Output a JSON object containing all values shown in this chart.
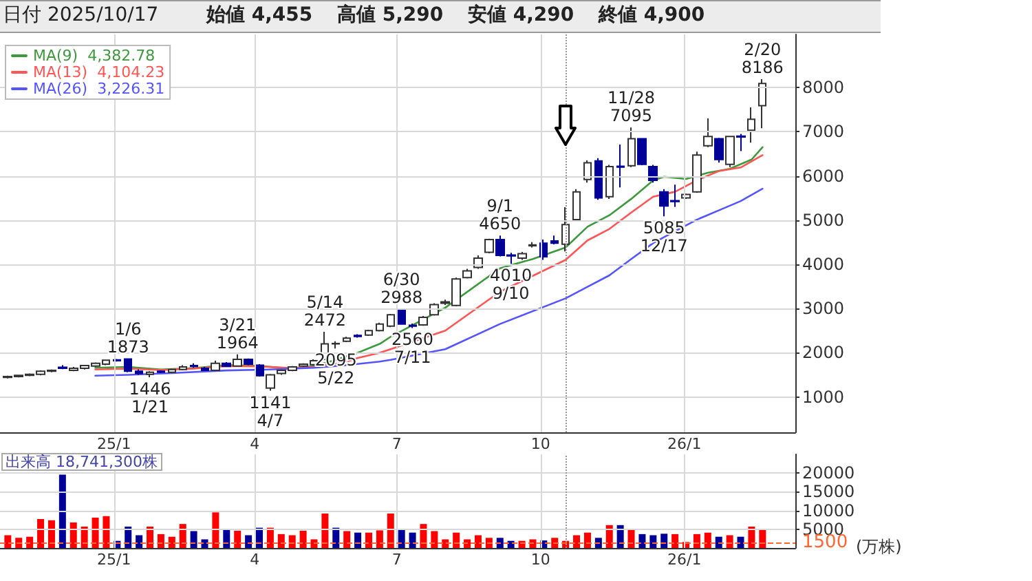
{
  "chart_data": [
    {
      "type": "candlestick",
      "title": "日付 2025/10/17",
      "annotations": [
        "始値 4,455",
        "高値 5,290",
        "安値 4,290",
        "終値 4,900",
        {
          "text": "1/6\n1873",
          "x": "2025-01-10",
          "y": 1873
        },
        {
          "text": "1446\n1/21",
          "x": "2025-01-24",
          "y": 1446
        },
        {
          "text": "3/21\n1964",
          "x": "2025-03-21",
          "y": 1964
        },
        {
          "text": "1141\n4/7",
          "x": "2025-04-11",
          "y": 1141
        },
        {
          "text": "5/14\n2472",
          "x": "2025-05-16",
          "y": 2472
        },
        {
          "text": "2095\n5/22",
          "x": "2025-05-23",
          "y": 2095
        },
        {
          "text": "6/30\n2988",
          "x": "2025-07-04",
          "y": 2988
        },
        {
          "text": "2560\n7/11",
          "x": "2025-07-11",
          "y": 2560
        },
        {
          "text": "9/1\n4650",
          "x": "2025-09-05",
          "y": 4650
        },
        {
          "text": "4010\n9/10",
          "x": "2025-09-12",
          "y": 4010
        },
        {
          "text": "11/28\n7095",
          "x": "2025-11-28",
          "y": 7095
        },
        {
          "text": "5085\n12/17",
          "x": "2025-12-19",
          "y": 5085
        },
        {
          "text": "2/20\n8186",
          "x": "2026-02-20",
          "y": 8186
        }
      ],
      "x": [
        "2024-10-25",
        "2024-11-01",
        "2024-11-08",
        "2024-11-15",
        "2024-11-22",
        "2024-11-29",
        "2024-12-06",
        "2024-12-13",
        "2024-12-20",
        "2024-12-27",
        "2025-01-03",
        "2025-01-10",
        "2025-01-17",
        "2025-01-24",
        "2025-01-31",
        "2025-02-07",
        "2025-02-14",
        "2025-02-21",
        "2025-02-28",
        "2025-03-07",
        "2025-03-14",
        "2025-03-21",
        "2025-03-28",
        "2025-04-04",
        "2025-04-11",
        "2025-04-18",
        "2025-04-25",
        "2025-05-02",
        "2025-05-09",
        "2025-05-16",
        "2025-05-23",
        "2025-05-30",
        "2025-06-06",
        "2025-06-13",
        "2025-06-20",
        "2025-06-27",
        "2025-07-04",
        "2025-07-11",
        "2025-07-18",
        "2025-07-25",
        "2025-08-01",
        "2025-08-08",
        "2025-08-15",
        "2025-08-22",
        "2025-08-29",
        "2025-09-05",
        "2025-09-12",
        "2025-09-19",
        "2025-09-26",
        "2025-10-03",
        "2025-10-10",
        "2025-10-17",
        "2025-10-24",
        "2025-10-31",
        "2025-11-07",
        "2025-11-14",
        "2025-11-21",
        "2025-11-28",
        "2025-12-05",
        "2025-12-12",
        "2025-12-19",
        "2025-12-26",
        "2026-01-02",
        "2026-01-09",
        "2026-01-16",
        "2026-01-23",
        "2026-01-30",
        "2026-02-06",
        "2026-02-13",
        "2026-02-20"
      ],
      "ohlc": [
        [
          1440,
          1480,
          1420,
          1460
        ],
        [
          1460,
          1500,
          1440,
          1490
        ],
        [
          1490,
          1530,
          1470,
          1510
        ],
        [
          1510,
          1600,
          1490,
          1580
        ],
        [
          1580,
          1620,
          1560,
          1600
        ],
        [
          1670,
          1720,
          1630,
          1650
        ],
        [
          1600,
          1680,
          1580,
          1650
        ],
        [
          1650,
          1720,
          1620,
          1710
        ],
        [
          1700,
          1780,
          1680,
          1760
        ],
        [
          1740,
          1840,
          1720,
          1830
        ],
        [
          1840,
          1860,
          1800,
          1820
        ],
        [
          1860,
          1873,
          1560,
          1580
        ],
        [
          1580,
          1620,
          1500,
          1530
        ],
        [
          1510,
          1580,
          1446,
          1560
        ],
        [
          1580,
          1600,
          1540,
          1560
        ],
        [
          1560,
          1640,
          1540,
          1620
        ],
        [
          1620,
          1720,
          1600,
          1680
        ],
        [
          1710,
          1760,
          1660,
          1690
        ],
        [
          1650,
          1680,
          1590,
          1600
        ],
        [
          1600,
          1820,
          1590,
          1760
        ],
        [
          1760,
          1790,
          1680,
          1690
        ],
        [
          1700,
          1964,
          1690,
          1850
        ],
        [
          1850,
          1870,
          1720,
          1740
        ],
        [
          1720,
          1740,
          1460,
          1480
        ],
        [
          1200,
          1520,
          1141,
          1500
        ],
        [
          1530,
          1620,
          1500,
          1600
        ],
        [
          1600,
          1700,
          1580,
          1680
        ],
        [
          1700,
          1760,
          1680,
          1740
        ],
        [
          1730,
          1850,
          1710,
          1820
        ],
        [
          1850,
          2472,
          1840,
          2200
        ],
        [
          2200,
          2260,
          2095,
          2210
        ],
        [
          2260,
          2360,
          2240,
          2330
        ],
        [
          2390,
          2420,
          2340,
          2370
        ],
        [
          2400,
          2520,
          2380,
          2500
        ],
        [
          2500,
          2680,
          2480,
          2650
        ],
        [
          2600,
          2880,
          2580,
          2860
        ],
        [
          2965,
          2988,
          2640,
          2650
        ],
        [
          2620,
          2660,
          2560,
          2600
        ],
        [
          2630,
          2830,
          2610,
          2800
        ],
        [
          2860,
          3120,
          2840,
          3090
        ],
        [
          3120,
          3200,
          3080,
          3150
        ],
        [
          3070,
          3700,
          3050,
          3670
        ],
        [
          3700,
          3900,
          3680,
          3850
        ],
        [
          3930,
          4200,
          3900,
          4140
        ],
        [
          4270,
          4580,
          4250,
          4560
        ],
        [
          4560,
          4650,
          4180,
          4200
        ],
        [
          4210,
          4260,
          4010,
          4190
        ],
        [
          4140,
          4280,
          4100,
          4240
        ],
        [
          4420,
          4500,
          4380,
          4440
        ],
        [
          4480,
          4560,
          4100,
          4170
        ],
        [
          4530,
          4650,
          4450,
          4480
        ],
        [
          4455,
          5290,
          4290,
          4900
        ],
        [
          5010,
          5700,
          4980,
          5640
        ],
        [
          5920,
          6350,
          5850,
          6295
        ],
        [
          6340,
          6400,
          5460,
          5500
        ],
        [
          5530,
          6250,
          5480,
          6210
        ],
        [
          6220,
          6710,
          5740,
          6200
        ],
        [
          6230,
          7095,
          6200,
          6840
        ],
        [
          6840,
          6850,
          6240,
          6260
        ],
        [
          6210,
          6250,
          5850,
          5900
        ],
        [
          5640,
          5700,
          5085,
          5320
        ],
        [
          5440,
          5800,
          5300,
          5420
        ],
        [
          5500,
          5600,
          5480,
          5580
        ],
        [
          5640,
          6550,
          5620,
          6470
        ],
        [
          6680,
          7300,
          6650,
          6890
        ],
        [
          6840,
          6860,
          6300,
          6370
        ],
        [
          6260,
          6900,
          6200,
          6890
        ],
        [
          6900,
          6950,
          6560,
          6880
        ],
        [
          7030,
          7550,
          6750,
          7280
        ],
        [
          7590,
          8186,
          7080,
          8090
        ]
      ],
      "colors": [
        "#ffffff",
        "#ffffff",
        "#ffffff",
        "#ffffff",
        "#ffffff",
        "#000099",
        "#ffffff",
        "#ffffff",
        "#ffffff",
        "#ffffff",
        "#000099",
        "#000099",
        "#000099",
        "#ffffff",
        "#000099",
        "#ffffff",
        "#ffffff",
        "#000099",
        "#000099",
        "#ffffff",
        "#000099",
        "#ffffff",
        "#000099",
        "#000099",
        "#ffffff",
        "#ffffff",
        "#ffffff",
        "#ffffff",
        "#ffffff",
        "#ffffff",
        "#ffffff",
        "#ffffff",
        "#000099",
        "#ffffff",
        "#ffffff",
        "#ffffff",
        "#000099",
        "#000099",
        "#ffffff",
        "#ffffff",
        "#ffffff",
        "#ffffff",
        "#ffffff",
        "#ffffff",
        "#ffffff",
        "#000099",
        "#000099",
        "#ffffff",
        "#ffffff",
        "#000099",
        "#000099",
        "#ffffff",
        "#ffffff",
        "#ffffff",
        "#000099",
        "#ffffff",
        "#000099",
        "#ffffff",
        "#000099",
        "#000099",
        "#000099",
        "#000099",
        "#ffffff",
        "#ffffff",
        "#ffffff",
        "#000099",
        "#ffffff",
        "#000099",
        "#ffffff",
        "#ffffff"
      ],
      "series": [
        {
          "type": "line",
          "name": "MA(9)  4,382.78",
          "color": "#3c9a3c",
          "x": [
            "2024-12-20",
            "2025-01-10",
            "2025-01-31",
            "2025-02-21",
            "2025-03-14",
            "2025-04-04",
            "2025-04-25",
            "2025-05-09",
            "2025-05-23",
            "2025-06-06",
            "2025-06-20",
            "2025-06-27",
            "2025-08-01",
            "2025-09-05",
            "2025-09-26",
            "2025-10-17",
            "2025-10-31",
            "2025-11-14",
            "2025-11-28",
            "2025-12-12",
            "2025-12-19",
            "2026-01-02",
            "2026-01-16",
            "2026-01-30",
            "2026-02-13",
            "2026-02-20"
          ],
          "values": [
            1660,
            1680,
            1620,
            1650,
            1720,
            1700,
            1640,
            1700,
            1840,
            2000,
            2200,
            2360,
            3020,
            3910,
            4120,
            4380,
            4850,
            5110,
            5480,
            5900,
            5980,
            5930,
            6070,
            6160,
            6370,
            6650
          ]
        },
        {
          "type": "line",
          "name": "MA(13)  4,104.23",
          "color": "#ff5555",
          "x": [
            "2024-12-20",
            "2025-01-10",
            "2025-01-31",
            "2025-02-21",
            "2025-03-14",
            "2025-04-04",
            "2025-04-25",
            "2025-05-09",
            "2025-05-30",
            "2025-06-06",
            "2025-06-20",
            "2025-06-27",
            "2025-08-01",
            "2025-09-05",
            "2025-10-17",
            "2025-10-31",
            "2025-11-14",
            "2025-11-28",
            "2025-12-12",
            "2025-12-26",
            "2026-01-09",
            "2026-01-23",
            "2026-02-06",
            "2026-02-20"
          ],
          "values": [
            1620,
            1640,
            1610,
            1640,
            1700,
            1690,
            1650,
            1680,
            1800,
            1880,
            2000,
            2080,
            2500,
            3380,
            4100,
            4540,
            4800,
            5170,
            5530,
            5640,
            5900,
            6110,
            6190,
            6470
          ]
        },
        {
          "type": "line",
          "name": "MA(26)  3,226.31",
          "color": "#5555ff",
          "x": [
            "2024-12-20",
            "2025-01-10",
            "2025-02-07",
            "2025-03-14",
            "2025-04-11",
            "2025-05-09",
            "2025-05-30",
            "2025-06-20",
            "2025-06-27",
            "2025-08-01",
            "2025-09-05",
            "2025-10-17",
            "2025-10-31",
            "2025-11-14",
            "2025-11-28",
            "2025-12-12",
            "2025-12-26",
            "2026-01-09",
            "2026-01-23",
            "2026-02-06",
            "2026-02-20"
          ],
          "values": [
            1480,
            1500,
            1540,
            1600,
            1620,
            1660,
            1720,
            1800,
            1840,
            2080,
            2650,
            3230,
            3490,
            3750,
            4120,
            4480,
            4750,
            5010,
            5220,
            5430,
            5710
          ]
        }
      ],
      "xlim": [
        "2024-10-20",
        "2026-03-13"
      ],
      "xticks": [
        {
          "value": "2025-01-01",
          "label": "25/1"
        },
        {
          "value": "2025-04-01",
          "label": "4"
        },
        {
          "value": "2025-07-01",
          "label": "7"
        },
        {
          "value": "2025-10-01",
          "label": "10"
        },
        {
          "value": "2026-01-01",
          "label": "26/1"
        }
      ],
      "ylim": [
        200,
        9200
      ],
      "yticks": [
        1000,
        2000,
        3000,
        4000,
        5000,
        6000,
        7000,
        8000
      ],
      "grid": true,
      "legend": "top left",
      "marker": "none",
      "ref_lines": [
        {
          "axis": "x",
          "value": "2025-10-17",
          "color": "#999999",
          "line_style": "dotted"
        }
      ]
    },
    {
      "type": "bar",
      "title": "出来高 18,741,300株",
      "ylabel": "(万株)",
      "x": [
        "2024-10-25",
        "2024-11-01",
        "2024-11-08",
        "2024-11-15",
        "2024-11-22",
        "2024-11-29",
        "2024-12-06",
        "2024-12-13",
        "2024-12-20",
        "2024-12-27",
        "2025-01-03",
        "2025-01-10",
        "2025-01-17",
        "2025-01-24",
        "2025-01-31",
        "2025-02-07",
        "2025-02-14",
        "2025-02-21",
        "2025-02-28",
        "2025-03-07",
        "2025-03-14",
        "2025-03-21",
        "2025-03-28",
        "2025-04-04",
        "2025-04-11",
        "2025-04-18",
        "2025-04-25",
        "2025-05-02",
        "2025-05-09",
        "2025-05-16",
        "2025-05-23",
        "2025-05-30",
        "2025-06-06",
        "2025-06-13",
        "2025-06-20",
        "2025-06-27",
        "2025-07-04",
        "2025-07-11",
        "2025-07-18",
        "2025-07-25",
        "2025-08-01",
        "2025-08-08",
        "2025-08-15",
        "2025-08-22",
        "2025-08-29",
        "2025-09-05",
        "2025-09-12",
        "2025-09-19",
        "2025-09-26",
        "2025-10-03",
        "2025-10-10",
        "2025-10-17",
        "2025-10-24",
        "2025-10-31",
        "2025-11-07",
        "2025-11-14",
        "2025-11-21",
        "2025-11-28",
        "2025-12-05",
        "2025-12-12",
        "2025-12-19",
        "2025-12-26",
        "2026-01-02",
        "2026-01-09",
        "2026-01-16",
        "2026-01-23",
        "2026-01-30",
        "2026-02-06",
        "2026-02-13",
        "2026-02-20"
      ],
      "values": [
        3400,
        2700,
        3000,
        7700,
        7400,
        19600,
        6800,
        5700,
        8100,
        8500,
        1900,
        5700,
        3400,
        5700,
        3700,
        3000,
        6400,
        4500,
        2300,
        9500,
        5000,
        4600,
        3400,
        5400,
        5400,
        3700,
        3400,
        4600,
        2300,
        9200,
        5400,
        4500,
        4100,
        4100,
        4700,
        9200,
        5000,
        4100,
        6400,
        4500,
        2300,
        4100,
        2300,
        3400,
        2700,
        2700,
        1900,
        1900,
        2300,
        2000,
        2700,
        1900,
        3400,
        4100,
        2700,
        6100,
        6100,
        5000,
        3700,
        3400,
        3800,
        3700,
        1600,
        3700,
        4100,
        3000,
        3400,
        3000,
        5700,
        5000
      ],
      "colors": [
        "#ff0000",
        "#ff0000",
        "#ff0000",
        "#ff0000",
        "#ff0000",
        "#000099",
        "#ff0000",
        "#ff0000",
        "#ff0000",
        "#ff0000",
        "#000099",
        "#000099",
        "#000099",
        "#ff0000",
        "#ff0000",
        "#ff0000",
        "#ff0000",
        "#000099",
        "#000099",
        "#ff0000",
        "#000099",
        "#ff0000",
        "#000099",
        "#000099",
        "#ff0000",
        "#ff0000",
        "#ff0000",
        "#ff0000",
        "#ff0000",
        "#ff0000",
        "#000099",
        "#ff0000",
        "#000099",
        "#ff0000",
        "#ff0000",
        "#ff0000",
        "#000099",
        "#000099",
        "#ff0000",
        "#ff0000",
        "#ff0000",
        "#ff0000",
        "#ff0000",
        "#ff0000",
        "#ff0000",
        "#000099",
        "#000099",
        "#ff0000",
        "#ff0000",
        "#000099",
        "#ff0000",
        "#ff0000",
        "#ff0000",
        "#ff0000",
        "#000099",
        "#ff0000",
        "#000099",
        "#ff0000",
        "#000099",
        "#000099",
        "#000099",
        "#ff0000",
        "#ff0000",
        "#ff0000",
        "#ff0000",
        "#000099",
        "#ff0000",
        "#000099",
        "#ff0000",
        "#ff0000"
      ],
      "xlim": [
        "2024-10-20",
        "2026-03-13"
      ],
      "xticks": [
        {
          "value": "2025-01-01",
          "label": "25/1"
        },
        {
          "value": "2025-04-01",
          "label": "4"
        },
        {
          "value": "2025-07-01",
          "label": "7"
        },
        {
          "value": "2025-10-01",
          "label": "10"
        },
        {
          "value": "2026-01-01",
          "label": "26/1"
        }
      ],
      "ylim": [
        0,
        25000
      ],
      "yticks": [
        5000,
        10000,
        15000,
        20000
      ],
      "grid": true,
      "ref_lines": [
        {
          "axis": "x",
          "value": "2025-10-17",
          "color": "#999999",
          "line_style": "dotted"
        },
        {
          "axis": "y",
          "value": 1500,
          "label": "1500",
          "color": "#ff6633",
          "line_style": "dashed"
        }
      ]
    }
  ]
}
